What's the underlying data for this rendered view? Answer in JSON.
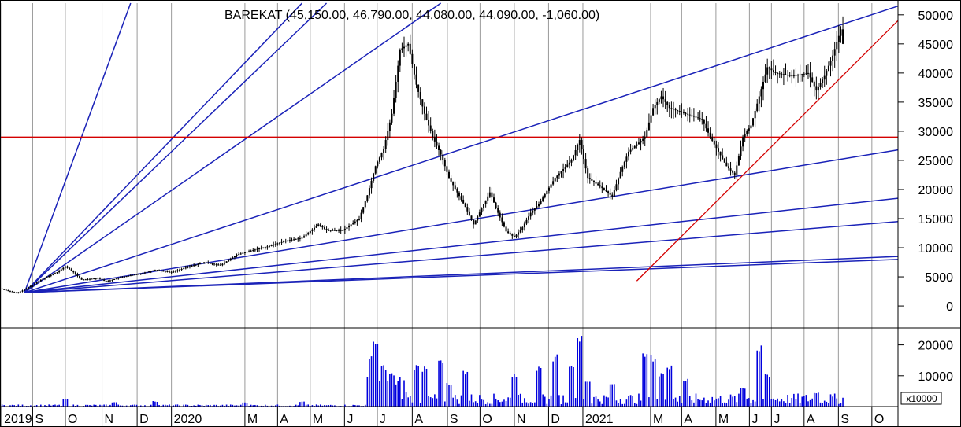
{
  "chart_data": {
    "type": "candlestick",
    "title": "BAREKAT (45,150.00, 46,790.00, 44,080.00, 44,090.00, -1,060.00)",
    "price_axis": {
      "ylim": [
        -3500,
        52000
      ],
      "ticks": [
        0,
        5000,
        10000,
        15000,
        20000,
        25000,
        30000,
        35000,
        40000,
        45000,
        50000
      ],
      "side": "right"
    },
    "volume_axis": {
      "ylim": [
        0,
        25000
      ],
      "ticks": [
        10000,
        20000
      ],
      "multiplier_label": "x10000"
    },
    "x_months": [
      {
        "label": "2019",
        "w": 0.2
      },
      {
        "label": "S",
        "w": 4.0
      },
      {
        "label": "O",
        "w": 8.0
      },
      {
        "label": "N",
        "w": 12.5
      },
      {
        "label": "D",
        "w": 16.8
      },
      {
        "label": "2020",
        "w": 21.0
      },
      {
        "label": "M",
        "w": 30.0
      },
      {
        "label": "A",
        "w": 34.0
      },
      {
        "label": "M",
        "w": 38.0
      },
      {
        "label": "J",
        "w": 42.2
      },
      {
        "label": "J",
        "w": 46.2
      },
      {
        "label": "A",
        "w": 50.5
      },
      {
        "label": "S",
        "w": 54.8
      },
      {
        "label": "O",
        "w": 58.8
      },
      {
        "label": "N",
        "w": 63.0
      },
      {
        "label": "D",
        "w": 67.2
      },
      {
        "label": "2021",
        "w": 71.4
      },
      {
        "label": "M",
        "w": 79.7
      },
      {
        "label": "A",
        "w": 83.5
      },
      {
        "label": "M",
        "w": 87.7
      },
      {
        "label": "J",
        "w": 91.8
      },
      {
        "label": "J",
        "w": 94.5
      },
      {
        "label": "A",
        "w": 98.5
      },
      {
        "label": "S",
        "w": 102.7
      },
      {
        "label": "O",
        "w": 106.8
      }
    ],
    "x_range_weeks": [
      0,
      110
    ],
    "price_path": [
      [
        0,
        3000
      ],
      [
        2,
        2200
      ],
      [
        3,
        2800
      ],
      [
        5,
        4500
      ],
      [
        7,
        5800
      ],
      [
        8,
        6800
      ],
      [
        9,
        5800
      ],
      [
        10,
        4500
      ],
      [
        12,
        4800
      ],
      [
        13,
        4200
      ],
      [
        15,
        5000
      ],
      [
        17,
        5500
      ],
      [
        19,
        6200
      ],
      [
        21,
        5800
      ],
      [
        23,
        6700
      ],
      [
        25,
        7500
      ],
      [
        27,
        7000
      ],
      [
        29,
        8800
      ],
      [
        31,
        9600
      ],
      [
        33,
        10300
      ],
      [
        35,
        11200
      ],
      [
        37,
        11700
      ],
      [
        39,
        14000
      ],
      [
        40,
        13000
      ],
      [
        42,
        13000
      ],
      [
        44,
        15000
      ],
      [
        45,
        19000
      ],
      [
        46,
        24000
      ],
      [
        47,
        27000
      ],
      [
        48,
        33000
      ],
      [
        49,
        44000
      ],
      [
        50,
        45000
      ],
      [
        51,
        38000
      ],
      [
        52,
        33000
      ],
      [
        53,
        29000
      ],
      [
        54,
        26000
      ],
      [
        55,
        22000
      ],
      [
        57,
        17000
      ],
      [
        58,
        14000
      ],
      [
        60,
        19500
      ],
      [
        61,
        16000
      ],
      [
        62,
        12800
      ],
      [
        63,
        11800
      ],
      [
        64,
        13500
      ],
      [
        65,
        16000
      ],
      [
        66,
        17500
      ],
      [
        68,
        22000
      ],
      [
        70,
        25000
      ],
      [
        71,
        28500
      ],
      [
        72,
        22000
      ],
      [
        74,
        20000
      ],
      [
        75,
        18800
      ],
      [
        76,
        23000
      ],
      [
        77,
        26500
      ],
      [
        79,
        29000
      ],
      [
        80,
        34000
      ],
      [
        81,
        36000
      ],
      [
        82,
        34000
      ],
      [
        84,
        33000
      ],
      [
        86,
        32000
      ],
      [
        87,
        29000
      ],
      [
        89,
        24000
      ],
      [
        90,
        22500
      ],
      [
        91,
        29000
      ],
      [
        92,
        31000
      ],
      [
        93,
        36000
      ],
      [
        94,
        41000
      ],
      [
        95,
        40000
      ],
      [
        97,
        39500
      ],
      [
        99,
        40000
      ],
      [
        100,
        37000
      ],
      [
        101,
        39500
      ],
      [
        102,
        43000
      ],
      [
        103,
        47500
      ],
      [
        103.3,
        44500
      ]
    ],
    "volume_bars": [
      {
        "w_from": 0,
        "w_to": 45,
        "level": 400,
        "spikes": [
          [
            8,
            2500
          ],
          [
            14,
            1500
          ],
          [
            19,
            1800
          ],
          [
            30,
            1500
          ],
          [
            37,
            1700
          ]
        ]
      },
      {
        "w_from": 45,
        "w_to": 50,
        "level": 6000,
        "spikes": [
          [
            45.5,
            18000
          ],
          [
            46,
            22000
          ],
          [
            47,
            14000
          ],
          [
            48,
            11000
          ]
        ]
      },
      {
        "w_from": 50,
        "w_to": 103.5,
        "level": 2500,
        "spikes": [
          [
            51,
            14000
          ],
          [
            52,
            13000
          ],
          [
            54,
            15000
          ],
          [
            55,
            8000
          ],
          [
            57,
            12000
          ],
          [
            63,
            11000
          ],
          [
            66,
            13000
          ],
          [
            68,
            17000
          ],
          [
            70,
            15000
          ],
          [
            71,
            24000
          ],
          [
            72,
            9000
          ],
          [
            75,
            8000
          ],
          [
            79,
            19000
          ],
          [
            80,
            17000
          ],
          [
            81,
            11000
          ],
          [
            82,
            14000
          ],
          [
            84,
            9000
          ],
          [
            91,
            6500
          ],
          [
            93,
            20000
          ],
          [
            94,
            11000
          ],
          [
            100,
            5000
          ]
        ]
      }
    ],
    "horizontal_lines": [
      {
        "y": 29000,
        "color": "#d40000"
      }
    ],
    "fan_lines": {
      "origin": [
        3,
        2300
      ],
      "color": "#1a22b8",
      "lines": [
        [
          16,
          52000
        ],
        [
          37,
          52000
        ],
        [
          40,
          52000
        ],
        [
          54,
          52000
        ],
        [
          110,
          51500
        ],
        [
          110,
          26800
        ],
        [
          110,
          18500
        ],
        [
          110,
          14500
        ],
        [
          110,
          8500
        ],
        [
          110,
          8000
        ]
      ]
    },
    "trend_lines": [
      {
        "from": [
          78,
          4300
        ],
        "to": [
          110,
          49000
        ],
        "color": "#d40000"
      }
    ],
    "colors": {
      "grid": "#9a9a9a",
      "candle": "#000000",
      "volume": "#0000dd",
      "fan": "#1a22b8",
      "red": "#d40000"
    }
  }
}
